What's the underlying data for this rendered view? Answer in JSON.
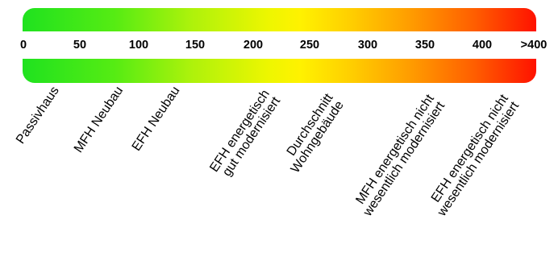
{
  "colors": {
    "low": "#1fe21f",
    "mid": "#fff200",
    "high": "#ff1200"
  },
  "scale": {
    "ticks": [
      "0",
      "50",
      "100",
      "150",
      "200",
      "250",
      "300",
      "350",
      "400",
      ">400"
    ]
  },
  "categories": [
    {
      "line1": "Passivhaus",
      "line2": ""
    },
    {
      "line1": "MFH Neubau",
      "line2": ""
    },
    {
      "line1": "EFH Neubau",
      "line2": ""
    },
    {
      "line1": "EFH energetisch",
      "line2": "gut modernisiert"
    },
    {
      "line1": "Durchschnitt",
      "line2": "Wohngebäude"
    },
    {
      "line1": "MFH energetisch nicht",
      "line2": "wesentlich modernisiert"
    },
    {
      "line1": "EFH energetisch nicht",
      "line2": "wesentlich modernisiert"
    }
  ]
}
